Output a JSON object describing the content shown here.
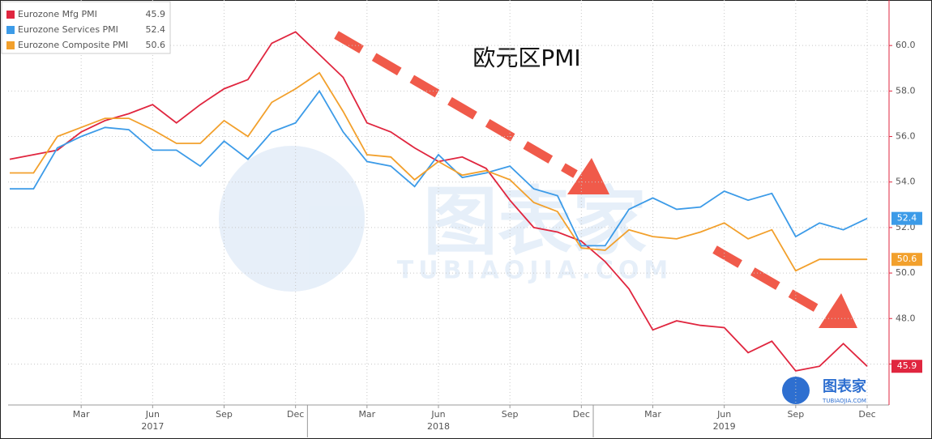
{
  "chart_data": {
    "type": "line",
    "title": "欧元区PMI",
    "categories": [
      null,
      null,
      null,
      "Mar",
      null,
      null,
      "Jun",
      null,
      null,
      "Sep",
      null,
      null,
      "Dec",
      null,
      null,
      "Mar",
      null,
      null,
      "Jun",
      null,
      null,
      "Sep",
      null,
      null,
      "Dec",
      null,
      null,
      "Mar",
      null,
      null,
      "Jun",
      null,
      null,
      "Sep",
      null,
      null,
      "Dec"
    ],
    "years": [
      "2017",
      "2018",
      "2019"
    ],
    "series": [
      {
        "name": "Eurozone Mfg PMI",
        "color": "#e0263f",
        "values": [
          55.0,
          55.2,
          55.4,
          56.2,
          56.7,
          57.0,
          57.4,
          56.6,
          57.4,
          58.1,
          58.5,
          60.1,
          60.6,
          59.6,
          58.6,
          56.6,
          56.2,
          55.5,
          54.9,
          55.1,
          54.6,
          53.2,
          52.0,
          51.8,
          51.4,
          50.5,
          49.3,
          47.5,
          47.9,
          47.7,
          47.6,
          46.5,
          47.0,
          45.7,
          45.9,
          46.9,
          45.9
        ]
      },
      {
        "name": "Eurozone Services PMI",
        "color": "#3c9be8",
        "values": [
          53.7,
          53.7,
          55.5,
          56.0,
          56.4,
          56.3,
          55.4,
          55.4,
          54.7,
          55.8,
          55.0,
          56.2,
          56.6,
          58.0,
          56.2,
          54.9,
          54.7,
          53.8,
          55.2,
          54.2,
          54.4,
          54.7,
          53.7,
          53.4,
          51.2,
          51.2,
          52.8,
          53.3,
          52.8,
          52.9,
          53.6,
          53.2,
          53.5,
          51.6,
          52.2,
          51.9,
          52.4
        ]
      },
      {
        "name": "Eurozone Composite PMI",
        "color": "#f2a02c",
        "values": [
          54.4,
          54.4,
          56.0,
          56.4,
          56.8,
          56.8,
          56.3,
          55.7,
          55.7,
          56.7,
          56.0,
          57.5,
          58.1,
          58.8,
          57.1,
          55.2,
          55.1,
          54.1,
          54.9,
          54.3,
          54.5,
          54.1,
          53.1,
          52.7,
          51.1,
          51.0,
          51.9,
          51.6,
          51.5,
          51.8,
          52.2,
          51.5,
          51.9,
          50.1,
          50.6,
          50.6,
          50.6
        ]
      }
    ],
    "ylim": [
      44.2,
      62
    ],
    "yticks": [
      {
        "value": 46,
        "label": "46.0"
      },
      {
        "value": 48,
        "label": "48.0"
      },
      {
        "value": 50,
        "label": "50.0"
      },
      {
        "value": 52,
        "label": "52.0"
      },
      {
        "value": 54,
        "label": "54.0"
      },
      {
        "value": 56,
        "label": "56.0"
      },
      {
        "value": 58,
        "label": "58.0"
      },
      {
        "value": 60,
        "label": "60.0"
      }
    ],
    "grid": true,
    "legend": "top-left",
    "watermark": [
      "图表家",
      "TUBIAOJIA.COM"
    ],
    "logo": [
      "图表家",
      "TUBIAOJIA.COM"
    ]
  }
}
